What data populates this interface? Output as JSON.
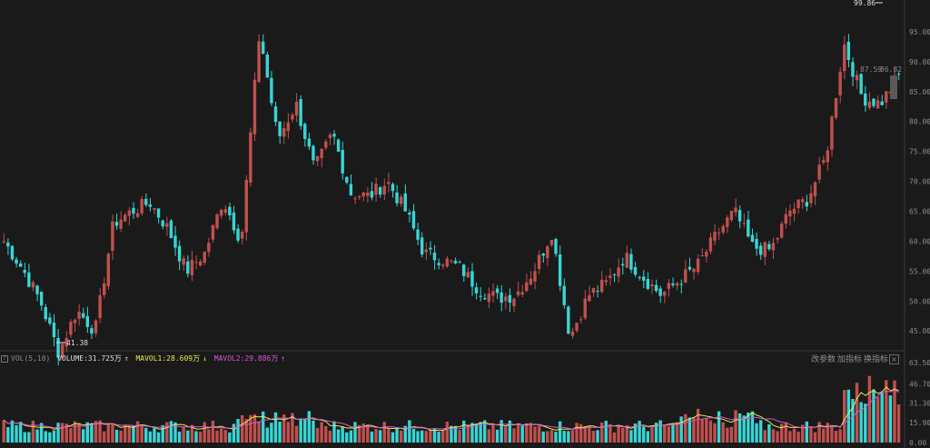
{
  "price_panel": {
    "high_marker": "99.86",
    "low_marker": "41.38",
    "current_label": "87.59",
    "current_label2": "86.82",
    "y_ticks": [
      "95.00",
      "90.00",
      "85.00",
      "80.00",
      "75.00",
      "70.00",
      "65.00",
      "60.00",
      "55.00",
      "50.00",
      "45.00"
    ]
  },
  "volume_panel": {
    "indicator": "VOL(5,10)",
    "volume": "VOLUME:31.725万",
    "mavol1": "MAVOL1:28.609万",
    "mavol2": "MAVOL2:29.886万",
    "up_arrow": "↑",
    "down_arrow": "↓",
    "y_ticks": [
      "63.50",
      "46.70",
      "31.30",
      "15.90",
      "0.00"
    ],
    "buttons": [
      "改参数",
      "加指标",
      "换指标"
    ],
    "close_label": "×"
  },
  "colors": {
    "up": "#c0504d",
    "down": "#37d6d6",
    "background": "#1a1a1a",
    "ma1": "#e8e84a",
    "ma2": "#d05ad8",
    "axis_text": "#8c8c8c"
  },
  "chart_data": {
    "type": "candlestick",
    "description_series": "daily price closes (approximate)",
    "ylim_price": [
      42,
      100
    ],
    "ylim_volume": [
      0,
      63.5
    ],
    "close_values": [
      60.0,
      55.5,
      50.0,
      41.4,
      48.5,
      45.0,
      63.0,
      65.0,
      66.5,
      62.0,
      55.0,
      58.0,
      67.0,
      60.0,
      95.0,
      77.0,
      83.0,
      72.0,
      78.0,
      68.0,
      67.5,
      70.0,
      65.0,
      58.0,
      57.0,
      55.5,
      52.0,
      50.5,
      51.0,
      55.0,
      61.5,
      44.0,
      51.0,
      53.0,
      57.5,
      54.0,
      51.0,
      53.5,
      56.0,
      61.0,
      65.0,
      59.0,
      58.5,
      65.0,
      67.0,
      74.0,
      93.0,
      84.0,
      83.0,
      87.6
    ]
  }
}
